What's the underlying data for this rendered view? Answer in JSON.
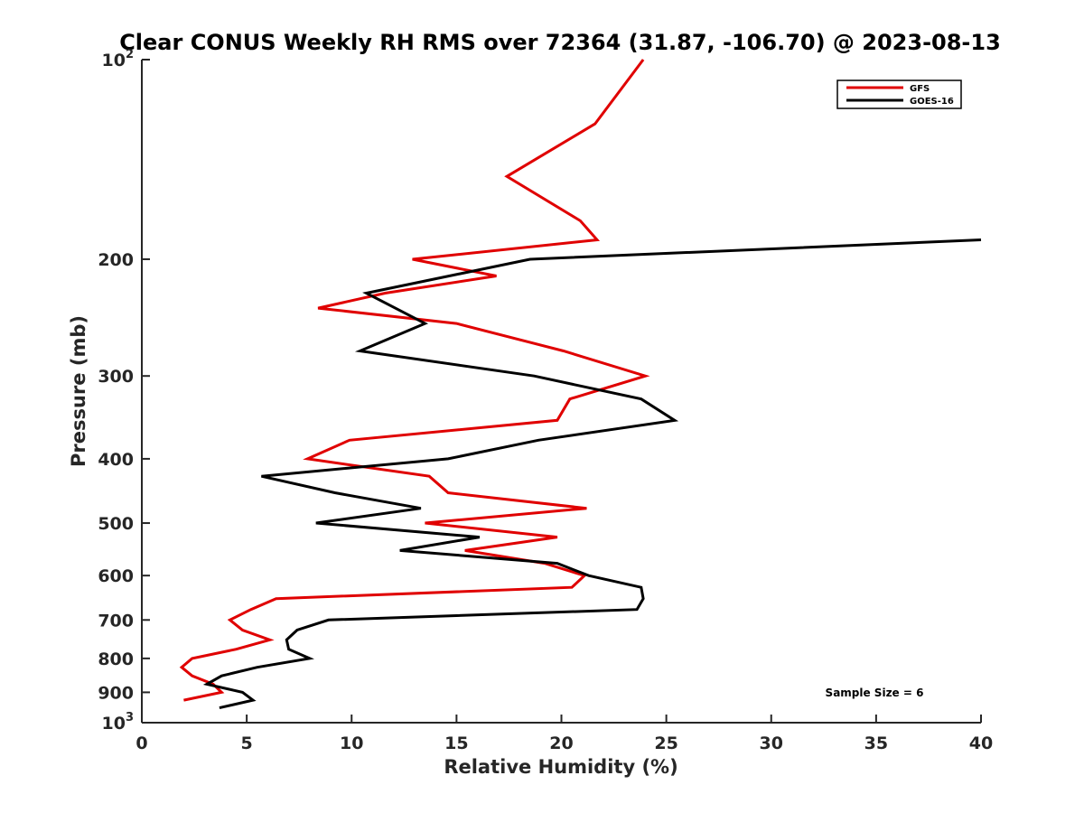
{
  "chart_data": {
    "type": "line",
    "title": "Clear CONUS Weekly RH RMS over 72364 (31.87, -106.70) @ 2023-08-13",
    "xlabel": "Relative Humidity (%)",
    "ylabel": "Pressure (mb)",
    "xlim": [
      0,
      40
    ],
    "ylim": [
      100,
      1000
    ],
    "y_scale": "log",
    "y_reversed": true,
    "grid": false,
    "legend_position": "top-right",
    "x_ticks": [
      "0",
      "5",
      "10",
      "15",
      "20",
      "25",
      "30",
      "35",
      "40"
    ],
    "y_ticks": [
      {
        "value": 100,
        "base": "10",
        "exp": "2"
      },
      {
        "value": 200,
        "base": "200",
        "exp": ""
      },
      {
        "value": 300,
        "base": "300",
        "exp": ""
      },
      {
        "value": 400,
        "base": "400",
        "exp": ""
      },
      {
        "value": 500,
        "base": "500",
        "exp": ""
      },
      {
        "value": 600,
        "base": "600",
        "exp": ""
      },
      {
        "value": 700,
        "base": "700",
        "exp": ""
      },
      {
        "value": 800,
        "base": "800",
        "exp": ""
      },
      {
        "value": 900,
        "base": "900",
        "exp": ""
      },
      {
        "value": 1000,
        "base": "10",
        "exp": "3"
      }
    ],
    "series": [
      {
        "name": "GFS",
        "color": "#e00000",
        "points": [
          [
            23.9,
            100
          ],
          [
            21.6,
            125
          ],
          [
            17.4,
            150
          ],
          [
            20.9,
            175
          ],
          [
            21.7,
            187
          ],
          [
            12.9,
            200
          ],
          [
            16.9,
            212
          ],
          [
            11.6,
            225
          ],
          [
            8.4,
            237
          ],
          [
            15.0,
            250
          ],
          [
            20.1,
            275
          ],
          [
            24.0,
            300
          ],
          [
            20.4,
            325
          ],
          [
            19.8,
            350
          ],
          [
            9.9,
            375
          ],
          [
            7.9,
            400
          ],
          [
            13.7,
            425
          ],
          [
            14.6,
            450
          ],
          [
            21.2,
            475
          ],
          [
            13.5,
            500
          ],
          [
            19.8,
            525
          ],
          [
            15.4,
            550
          ],
          [
            19.2,
            575
          ],
          [
            21.1,
            600
          ],
          [
            20.5,
            625
          ],
          [
            6.4,
            650
          ],
          [
            5.2,
            675
          ],
          [
            4.2,
            700
          ],
          [
            4.8,
            725
          ],
          [
            6.1,
            750
          ],
          [
            4.5,
            775
          ],
          [
            2.4,
            800
          ],
          [
            1.9,
            825
          ],
          [
            2.4,
            850
          ],
          [
            3.4,
            875
          ],
          [
            3.8,
            900
          ],
          [
            2.0,
            925
          ]
        ]
      },
      {
        "name": "GOES-16",
        "color": "#000000",
        "points": [
          [
            40.0,
            187
          ],
          [
            18.5,
            200
          ],
          [
            10.7,
            225
          ],
          [
            13.5,
            250
          ],
          [
            10.4,
            275
          ],
          [
            18.7,
            300
          ],
          [
            23.8,
            325
          ],
          [
            25.4,
            350
          ],
          [
            18.9,
            375
          ],
          [
            14.6,
            400
          ],
          [
            5.7,
            425
          ],
          [
            9.2,
            450
          ],
          [
            13.3,
            475
          ],
          [
            8.3,
            500
          ],
          [
            16.1,
            525
          ],
          [
            12.3,
            550
          ],
          [
            19.8,
            575
          ],
          [
            21.3,
            600
          ],
          [
            23.8,
            625
          ],
          [
            23.9,
            650
          ],
          [
            23.6,
            675
          ],
          [
            8.9,
            700
          ],
          [
            7.4,
            725
          ],
          [
            6.9,
            750
          ],
          [
            7.0,
            775
          ],
          [
            8.0,
            800
          ],
          [
            5.5,
            825
          ],
          [
            3.8,
            850
          ],
          [
            3.1,
            875
          ],
          [
            4.8,
            900
          ],
          [
            5.3,
            925
          ],
          [
            3.7,
            950
          ]
        ]
      }
    ],
    "annotation": "Sample Size = 6"
  }
}
